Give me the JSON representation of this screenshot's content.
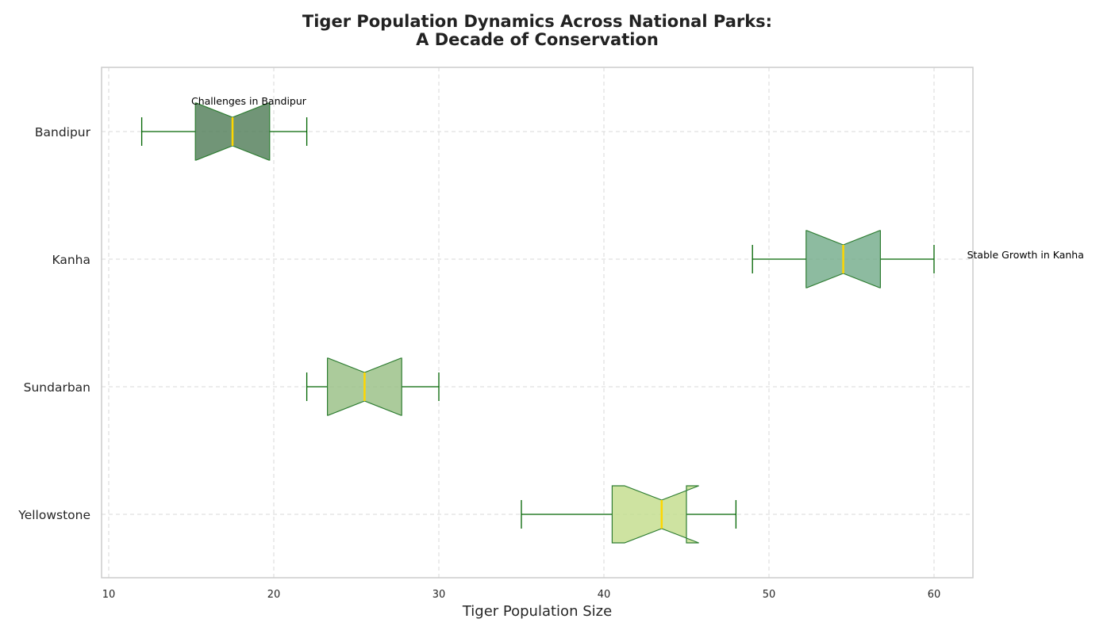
{
  "chart_data": {
    "type": "box",
    "orientation": "horizontal",
    "notched": true,
    "title_lines": [
      "Tiger Population Dynamics Across National Parks:",
      "A Decade of Conservation"
    ],
    "xlabel": "Tiger Population Size",
    "ylabel": "",
    "xlim": [
      9.5,
      62.5
    ],
    "xticks": [
      10,
      20,
      30,
      40,
      50,
      60
    ],
    "grid": true,
    "legend": "none",
    "median_color": "#FFD700",
    "whisker_color": "#006400",
    "box_edge_color": "#2E7D32",
    "series": [
      {
        "category": "Yellowstone",
        "whisker_low": 35,
        "q1": 40.5,
        "median": 43.5,
        "q3": 45,
        "whisker_high": 48,
        "notch_low": 41.25,
        "notch_high": 45.75,
        "color": "#C2DC8A"
      },
      {
        "category": "Sundarban",
        "whisker_low": 22,
        "q1": 23.25,
        "median": 25.5,
        "q3": 27.75,
        "whisker_high": 30,
        "notch_low": 23.3,
        "notch_high": 27.7,
        "color": "#96BE82"
      },
      {
        "category": "Kanha",
        "whisker_low": 49,
        "q1": 52.25,
        "median": 54.5,
        "q3": 56.75,
        "whisker_high": 60,
        "notch_low": 52.3,
        "notch_high": 56.7,
        "color": "#71AA88"
      },
      {
        "category": "Bandipur",
        "whisker_low": 12,
        "q1": 15.25,
        "median": 17.5,
        "q3": 19.75,
        "whisker_high": 22,
        "notch_low": 15.3,
        "notch_high": 19.7,
        "color": "#4D7A55"
      }
    ],
    "annotations": [
      {
        "category": "Bandipur",
        "text": "Challenges in Bandipur",
        "x": 15,
        "offset": "above"
      },
      {
        "category": "Kanha",
        "text": "Stable Growth in Kanha",
        "x": 62,
        "offset": "above"
      }
    ]
  }
}
